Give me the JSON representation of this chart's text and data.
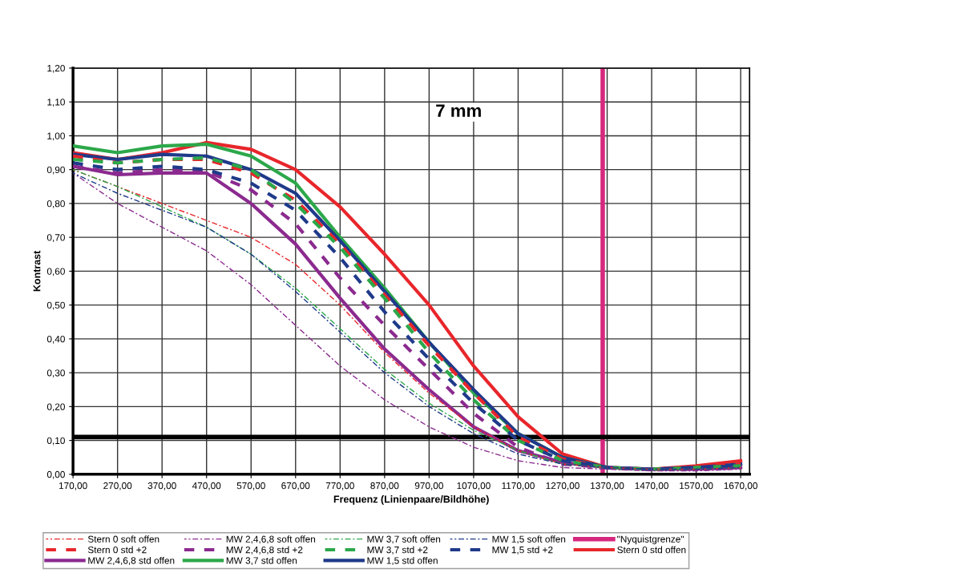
{
  "chart_data": {
    "type": "line",
    "xlabel": "Frequenz (Linienpaare/Bildhöhe)",
    "ylabel": "Kontrast",
    "annotations": [
      "7 mm"
    ],
    "x": [
      170,
      270,
      370,
      470,
      570,
      670,
      770,
      870,
      970,
      1070,
      1170,
      1270,
      1370,
      1470,
      1570,
      1670
    ],
    "xlim": [
      170,
      1690
    ],
    "xticks": [
      {
        "value": 170,
        "label": "170,00"
      },
      {
        "value": 270,
        "label": "270,00"
      },
      {
        "value": 370,
        "label": "370,00"
      },
      {
        "value": 470,
        "label": "470,00"
      },
      {
        "value": 570,
        "label": "570,00"
      },
      {
        "value": 670,
        "label": "670,00"
      },
      {
        "value": 770,
        "label": "770,00"
      },
      {
        "value": 870,
        "label": "870,00"
      },
      {
        "value": 970,
        "label": "970,00"
      },
      {
        "value": 1070,
        "label": "1070,00"
      },
      {
        "value": 1170,
        "label": "1170,00"
      },
      {
        "value": 1270,
        "label": "1270,00"
      },
      {
        "value": 1370,
        "label": "1370,00"
      },
      {
        "value": 1470,
        "label": "1470,00"
      },
      {
        "value": 1570,
        "label": "1570,00"
      },
      {
        "value": 1670,
        "label": "1670,00"
      }
    ],
    "ylim": [
      0,
      1.2
    ],
    "yticks": [
      {
        "value": 0,
        "label": "0,00"
      },
      {
        "value": 0.1,
        "label": "0,10"
      },
      {
        "value": 0.2,
        "label": "0,20"
      },
      {
        "value": 0.3,
        "label": "0,30"
      },
      {
        "value": 0.4,
        "label": "0,40"
      },
      {
        "value": 0.5,
        "label": "0,50"
      },
      {
        "value": 0.6,
        "label": "0,60"
      },
      {
        "value": 0.7,
        "label": "0,70"
      },
      {
        "value": 0.8,
        "label": "0,80"
      },
      {
        "value": 0.9,
        "label": "0,90"
      },
      {
        "value": 1.0,
        "label": "1,00"
      },
      {
        "value": 1.1,
        "label": "1,10"
      },
      {
        "value": 1.2,
        "label": "1,20"
      }
    ],
    "grid": true,
    "legend": "bottom",
    "marker": "none",
    "series": [
      {
        "name": "Stern 0 soft offen",
        "color": "#e8262b",
        "line_style": "dashdot",
        "values": [
          0.9,
          0.85,
          0.8,
          0.75,
          0.7,
          0.62,
          0.5,
          0.36,
          0.24,
          0.14,
          0.07,
          0.03,
          0.02,
          0.015,
          0.015,
          0.02
        ]
      },
      {
        "name": "MW 2,4,6,8 soft offen",
        "color": "#8b2a8f",
        "line_style": "dashdot",
        "values": [
          0.89,
          0.8,
          0.73,
          0.66,
          0.56,
          0.44,
          0.32,
          0.22,
          0.14,
          0.08,
          0.04,
          0.02,
          0.015,
          0.01,
          0.01,
          0.015
        ]
      },
      {
        "name": "MW 3,7 soft offen",
        "color": "#2ca84a",
        "line_style": "dashdot",
        "values": [
          0.9,
          0.85,
          0.79,
          0.73,
          0.65,
          0.55,
          0.43,
          0.31,
          0.21,
          0.13,
          0.07,
          0.03,
          0.02,
          0.015,
          0.015,
          0.02
        ]
      },
      {
        "name": "MW 1,5 soft offen",
        "color": "#1f3a8a",
        "line_style": "dashdot",
        "values": [
          0.89,
          0.83,
          0.78,
          0.73,
          0.65,
          0.54,
          0.42,
          0.3,
          0.2,
          0.12,
          0.06,
          0.03,
          0.02,
          0.015,
          0.015,
          0.02
        ]
      },
      {
        "name": "Stern 0 std +2",
        "color": "#e8262b",
        "line_style": "dashed",
        "values": [
          0.94,
          0.92,
          0.93,
          0.93,
          0.89,
          0.81,
          0.68,
          0.53,
          0.38,
          0.24,
          0.11,
          0.045,
          0.02,
          0.015,
          0.02,
          0.03
        ]
      },
      {
        "name": "MW 2,4,6,8 std +2",
        "color": "#8b2a8f",
        "line_style": "dashed",
        "values": [
          0.91,
          0.89,
          0.9,
          0.895,
          0.84,
          0.74,
          0.58,
          0.44,
          0.31,
          0.18,
          0.08,
          0.03,
          0.02,
          0.015,
          0.015,
          0.02
        ]
      },
      {
        "name": "MW 3,7 std +2",
        "color": "#2ca84a",
        "line_style": "dashed",
        "values": [
          0.93,
          0.92,
          0.93,
          0.935,
          0.9,
          0.8,
          0.67,
          0.52,
          0.36,
          0.22,
          0.1,
          0.04,
          0.02,
          0.015,
          0.02,
          0.025
        ]
      },
      {
        "name": "MW 1,5 std +2",
        "color": "#1f3a8a",
        "line_style": "dashed",
        "values": [
          0.92,
          0.9,
          0.91,
          0.9,
          0.86,
          0.78,
          0.64,
          0.48,
          0.34,
          0.21,
          0.1,
          0.04,
          0.02,
          0.015,
          0.02,
          0.025
        ]
      },
      {
        "name": "Stern 0 std offen",
        "color": "#e8262b",
        "line_style": "solid",
        "values": [
          0.95,
          0.93,
          0.95,
          0.98,
          0.96,
          0.9,
          0.79,
          0.65,
          0.5,
          0.32,
          0.17,
          0.06,
          0.02,
          0.015,
          0.025,
          0.04
        ]
      },
      {
        "name": "MW 2,4,6,8 std offen",
        "color": "#8b2a8f",
        "line_style": "solid",
        "values": [
          0.91,
          0.885,
          0.89,
          0.89,
          0.8,
          0.68,
          0.52,
          0.37,
          0.25,
          0.14,
          0.07,
          0.035,
          0.02,
          0.015,
          0.015,
          0.02
        ]
      },
      {
        "name": "MW 3,7 std offen",
        "color": "#2ca84a",
        "line_style": "solid",
        "values": [
          0.97,
          0.95,
          0.97,
          0.975,
          0.94,
          0.86,
          0.7,
          0.55,
          0.39,
          0.24,
          0.12,
          0.05,
          0.02,
          null,
          null,
          null
        ]
      },
      {
        "name": "MW 1,5 std offen",
        "color": "#1f3a8a",
        "line_style": "solid",
        "values": [
          0.945,
          0.93,
          0.945,
          0.94,
          0.9,
          0.83,
          0.69,
          0.54,
          0.39,
          0.25,
          0.12,
          0.05,
          0.02,
          0.015,
          0.02,
          0.03
        ]
      }
    ],
    "ref_lines": [
      {
        "axis": "x",
        "value": 1360,
        "label": "\"Nyquistgrenze\"",
        "color": "#d6287e",
        "line_style": "solid"
      },
      {
        "axis": "y",
        "value": 0.11,
        "color": "#000000",
        "line_style": "solid"
      }
    ]
  }
}
